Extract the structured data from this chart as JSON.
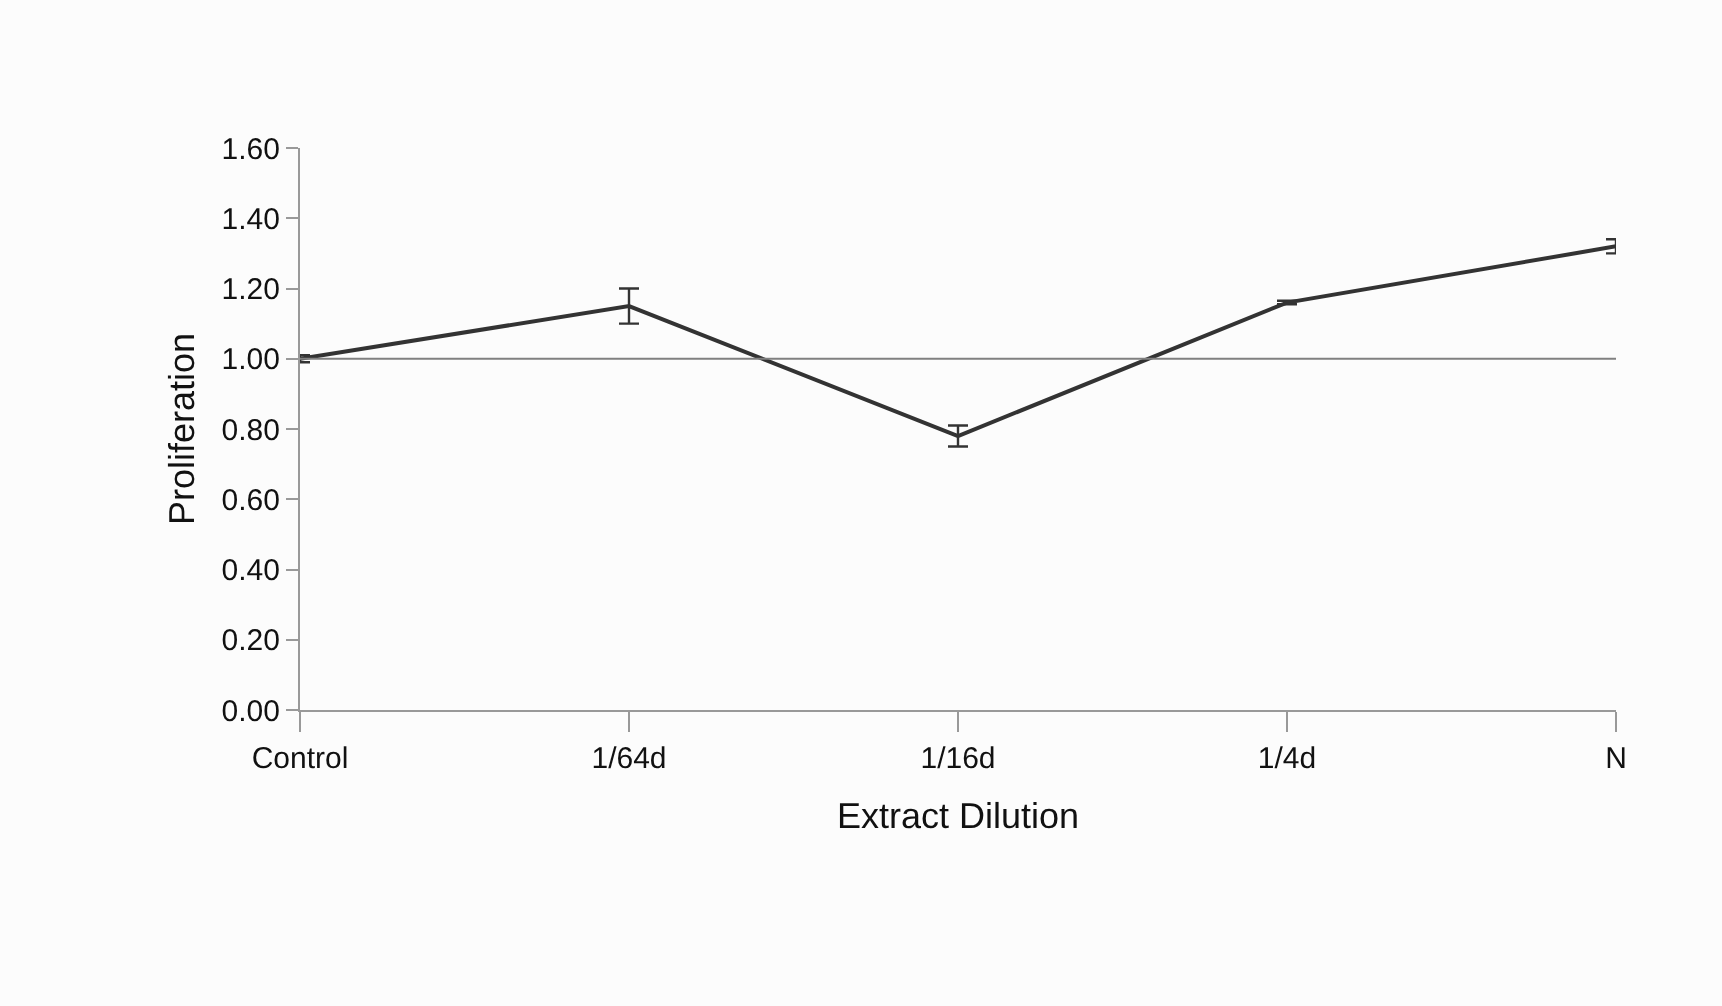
{
  "chart_data": {
    "type": "line",
    "xlabel": "Extract Dilution",
    "ylabel": "Proliferation",
    "categories": [
      "Control",
      "1/64d",
      "1/16d",
      "1/4d",
      "N"
    ],
    "series": [
      {
        "color": "#333333",
        "values": [
          1.0,
          1.15,
          0.78,
          1.16,
          1.32
        ],
        "errors": [
          0.01,
          0.05,
          0.03,
          0.005,
          0.02
        ]
      }
    ],
    "ylim": [
      0,
      1.6
    ],
    "yticks": [
      {
        "value": 0,
        "label": "0.00"
      },
      {
        "value": 0.2,
        "label": "0.20"
      },
      {
        "value": 0.4,
        "label": "0.40"
      },
      {
        "value": 0.6,
        "label": "0.60"
      },
      {
        "value": 0.8,
        "label": "0.80"
      },
      {
        "value": 1.0,
        "label": "1.00"
      },
      {
        "value": 1.2,
        "label": "1.20"
      },
      {
        "value": 1.4,
        "label": "1.40"
      },
      {
        "value": 1.6,
        "label": "1.60"
      }
    ],
    "ref_lines": [
      {
        "axis": "y",
        "value": 1.0,
        "color": "#808080"
      }
    ],
    "marker": "none",
    "line_style": "solid"
  }
}
